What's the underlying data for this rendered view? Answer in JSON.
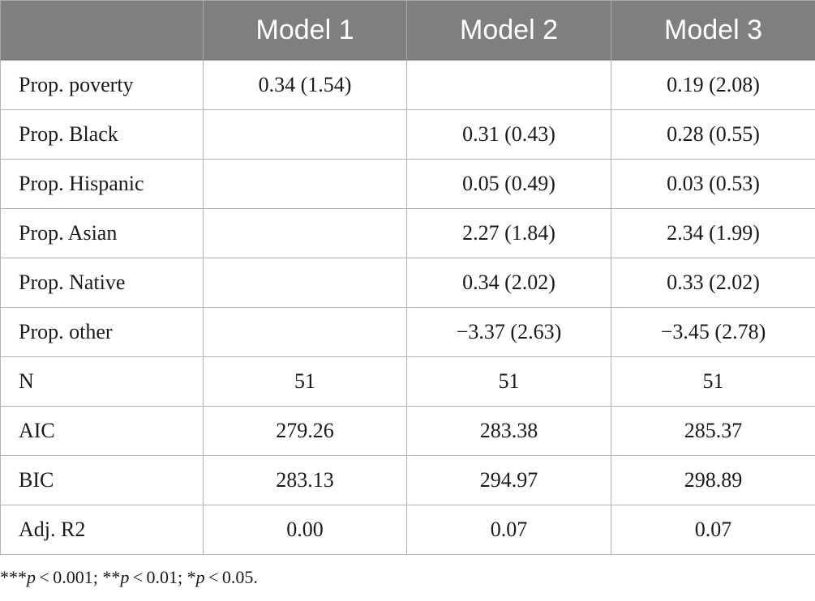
{
  "table": {
    "headers": [
      "",
      "Model 1",
      "Model 2",
      "Model 3"
    ],
    "rows": [
      {
        "label": "Prop. poverty",
        "cells": [
          "0.34 (1.54)",
          "",
          "0.19 (2.08)"
        ]
      },
      {
        "label": "Prop. Black",
        "cells": [
          "",
          "0.31 (0.43)",
          "0.28 (0.55)"
        ]
      },
      {
        "label": "Prop. Hispanic",
        "cells": [
          "",
          "0.05 (0.49)",
          "0.03 (0.53)"
        ]
      },
      {
        "label": "Prop. Asian",
        "cells": [
          "",
          "2.27 (1.84)",
          "2.34 (1.99)"
        ]
      },
      {
        "label": "Prop. Native",
        "cells": [
          "",
          "0.34 (2.02)",
          "0.33 (2.02)"
        ]
      },
      {
        "label": "Prop. other",
        "cells": [
          "",
          "−3.37 (2.63)",
          "−3.45 (2.78)"
        ]
      },
      {
        "label": "N",
        "cells": [
          "51",
          "51",
          "51"
        ]
      },
      {
        "label": "AIC",
        "cells": [
          "279.26",
          "283.38",
          "285.37"
        ]
      },
      {
        "label": "BIC",
        "cells": [
          "283.13",
          "294.97",
          "298.89"
        ]
      },
      {
        "label": "Adj. R2",
        "cells": [
          "0.00",
          "0.07",
          "0.07"
        ]
      }
    ]
  },
  "footnote": {
    "parts": [
      {
        "text": "***",
        "italic": false
      },
      {
        "text": "p",
        "italic": true
      },
      {
        "text": " < 0.001; **",
        "italic": false
      },
      {
        "text": "p",
        "italic": true
      },
      {
        "text": " < 0.01; *",
        "italic": false
      },
      {
        "text": "p",
        "italic": true
      },
      {
        "text": " < 0.05.",
        "italic": false
      }
    ]
  }
}
